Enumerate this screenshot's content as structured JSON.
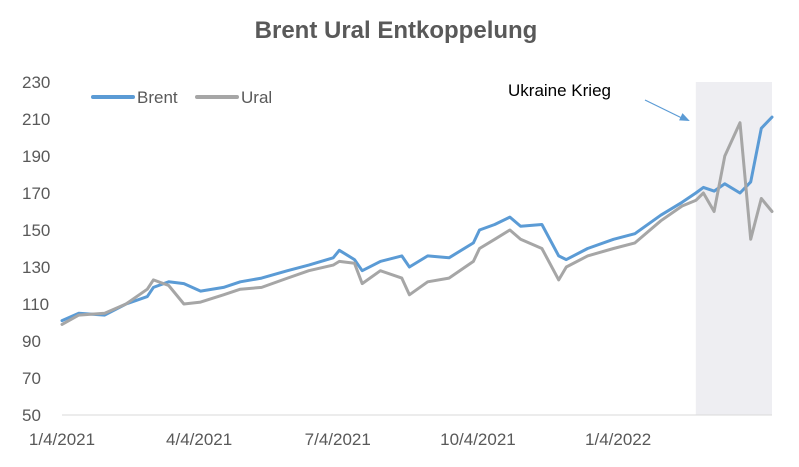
{
  "chart_data": {
    "type": "line",
    "title": "Brent Ural Entkoppelung",
    "xlabel": "",
    "ylabel": "",
    "ylim": [
      50,
      230
    ],
    "yticks": [
      50,
      70,
      90,
      110,
      130,
      150,
      170,
      190,
      210,
      230
    ],
    "xlim": [
      "2021-01-04",
      "2022-04-15"
    ],
    "xticks": [
      "1/4/2021",
      "4/4/2021",
      "7/4/2021",
      "10/4/2021",
      "1/4/2022"
    ],
    "xtick_dates": [
      "2021-01-04",
      "2021-04-04",
      "2021-07-04",
      "2021-10-04",
      "2022-01-04"
    ],
    "grid": false,
    "legend_position": "top-left",
    "highlight_region": {
      "from": "2022-02-24",
      "to": "2022-04-15",
      "color": "#eeeef2"
    },
    "annotation": {
      "text": "Ukraine Krieg",
      "points_to": [
        "2022-02-24",
        210
      ]
    },
    "series": [
      {
        "name": "Brent",
        "color": "#5b9bd5",
        "x": [
          "2021-01-04",
          "2021-01-15",
          "2021-02-01",
          "2021-02-15",
          "2021-03-01",
          "2021-03-05",
          "2021-03-15",
          "2021-03-25",
          "2021-04-05",
          "2021-04-20",
          "2021-05-01",
          "2021-05-15",
          "2021-06-01",
          "2021-06-15",
          "2021-07-01",
          "2021-07-05",
          "2021-07-15",
          "2021-07-20",
          "2021-08-01",
          "2021-08-15",
          "2021-08-20",
          "2021-09-01",
          "2021-09-15",
          "2021-10-01",
          "2021-10-05",
          "2021-10-15",
          "2021-10-25",
          "2021-11-01",
          "2021-11-15",
          "2021-11-26",
          "2021-12-01",
          "2021-12-15",
          "2022-01-01",
          "2022-01-15",
          "2022-02-01",
          "2022-02-15",
          "2022-02-24",
          "2022-03-01",
          "2022-03-08",
          "2022-03-15",
          "2022-03-25",
          "2022-04-01",
          "2022-04-08",
          "2022-04-15"
        ],
        "values": [
          101,
          105,
          104,
          110,
          114,
          119,
          122,
          121,
          117,
          119,
          122,
          124,
          128,
          131,
          135,
          139,
          134,
          128,
          133,
          136,
          130,
          136,
          135,
          143,
          150,
          153,
          157,
          152,
          153,
          136,
          134,
          140,
          145,
          148,
          158,
          165,
          170,
          173,
          171,
          175,
          170,
          176,
          205,
          211
        ]
      },
      {
        "name": "Ural",
        "color": "#a6a6a6",
        "x": [
          "2021-01-04",
          "2021-01-15",
          "2021-02-01",
          "2021-02-15",
          "2021-03-01",
          "2021-03-05",
          "2021-03-15",
          "2021-03-25",
          "2021-04-05",
          "2021-04-20",
          "2021-05-01",
          "2021-05-15",
          "2021-06-01",
          "2021-06-15",
          "2021-07-01",
          "2021-07-05",
          "2021-07-15",
          "2021-07-20",
          "2021-08-01",
          "2021-08-15",
          "2021-08-20",
          "2021-09-01",
          "2021-09-15",
          "2021-10-01",
          "2021-10-05",
          "2021-10-15",
          "2021-10-25",
          "2021-11-01",
          "2021-11-15",
          "2021-11-26",
          "2021-12-01",
          "2021-12-15",
          "2022-01-01",
          "2022-01-15",
          "2022-02-01",
          "2022-02-15",
          "2022-02-24",
          "2022-03-01",
          "2022-03-08",
          "2022-03-15",
          "2022-03-25",
          "2022-04-01",
          "2022-04-08",
          "2022-04-15"
        ],
        "values": [
          99,
          104,
          105,
          110,
          118,
          123,
          120,
          110,
          111,
          115,
          118,
          119,
          124,
          128,
          131,
          133,
          132,
          121,
          128,
          124,
          115,
          122,
          124,
          133,
          140,
          145,
          150,
          145,
          140,
          123,
          130,
          136,
          140,
          143,
          155,
          163,
          166,
          170,
          160,
          190,
          208,
          145,
          167,
          160
        ]
      }
    ]
  }
}
